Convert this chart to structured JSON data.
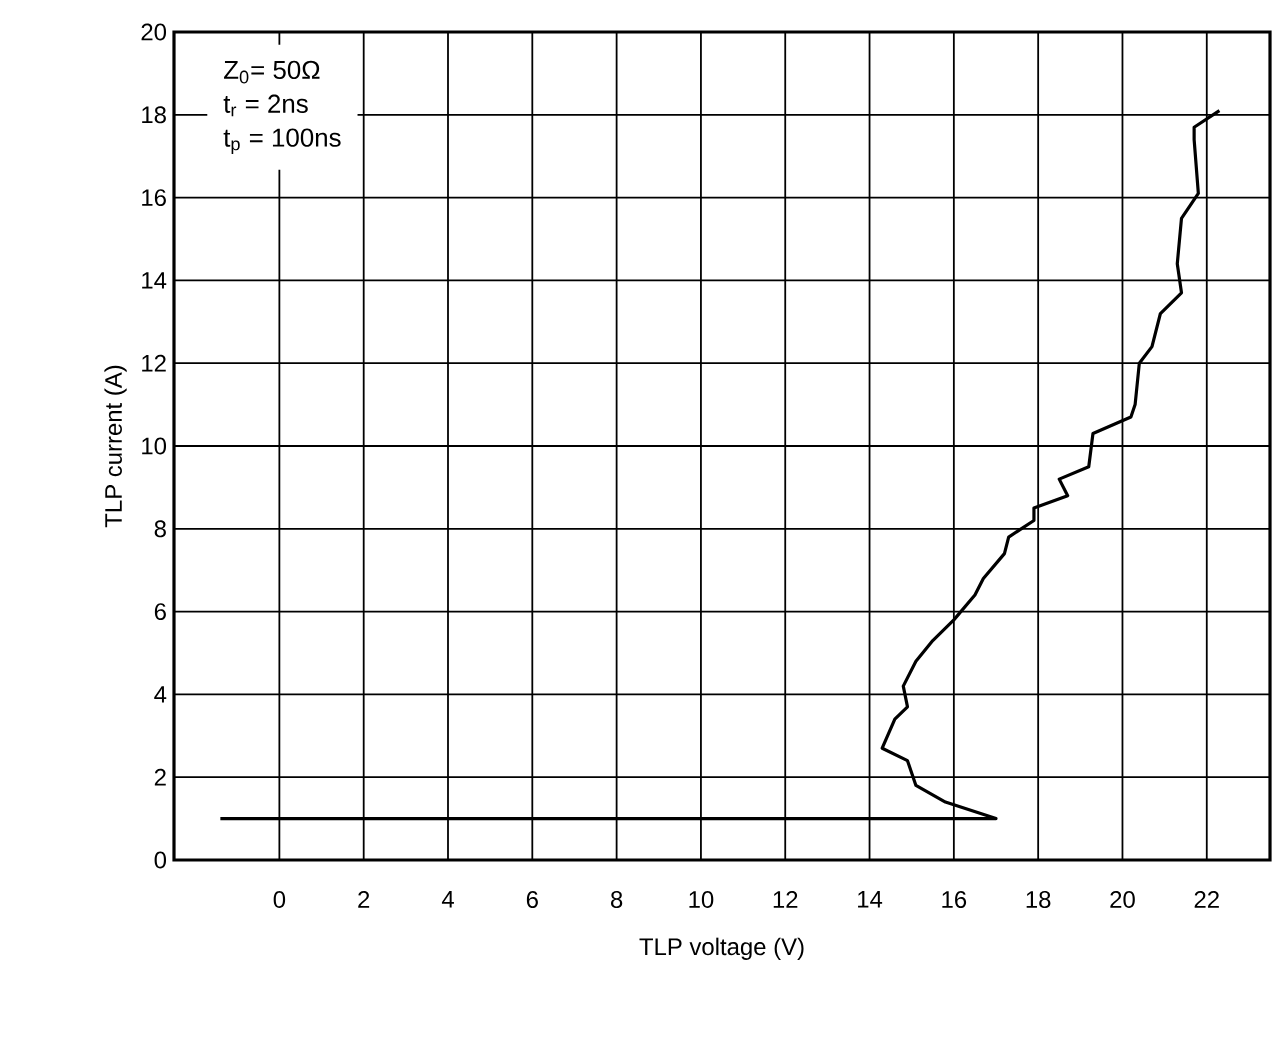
{
  "chart_data": {
    "type": "line",
    "xlabel": "TLP voltage (V)",
    "ylabel": "TLP current (A)",
    "color": "#000000",
    "grid": true,
    "x": [
      -1.4,
      17.0,
      15.8,
      15.1,
      14.9,
      14.3,
      14.6,
      14.9,
      14.8,
      15.1,
      15.5,
      16.0,
      16.5,
      16.7,
      17.2,
      17.3,
      17.9,
      17.9,
      18.7,
      18.5,
      19.2,
      19.3,
      20.2,
      20.3,
      20.4,
      20.7,
      20.9,
      21.4,
      21.3,
      21.4,
      21.8,
      21.7,
      21.7,
      22.3
    ],
    "values": [
      1.0,
      1.0,
      1.4,
      1.8,
      2.4,
      2.7,
      3.4,
      3.7,
      4.2,
      4.8,
      5.3,
      5.8,
      6.4,
      6.8,
      7.4,
      7.8,
      8.2,
      8.5,
      8.8,
      9.2,
      9.5,
      10.3,
      10.7,
      11.0,
      12.0,
      12.4,
      13.2,
      13.7,
      14.4,
      15.5,
      16.1,
      17.4,
      17.7,
      18.1
    ],
    "xlim": [
      -2.5,
      23.5
    ],
    "ylim": [
      0,
      20
    ],
    "xticks": [
      0,
      2,
      4,
      6,
      8,
      10,
      12,
      14,
      16,
      18,
      20,
      22
    ],
    "yticks": [
      0,
      2,
      4,
      6,
      8,
      10,
      12,
      14,
      16,
      18,
      20
    ],
    "annotations": [
      "Z$_{0}$= 50Ω",
      "t$_{r}$ = 2ns",
      "t$_{p}$ = 100ns"
    ]
  }
}
